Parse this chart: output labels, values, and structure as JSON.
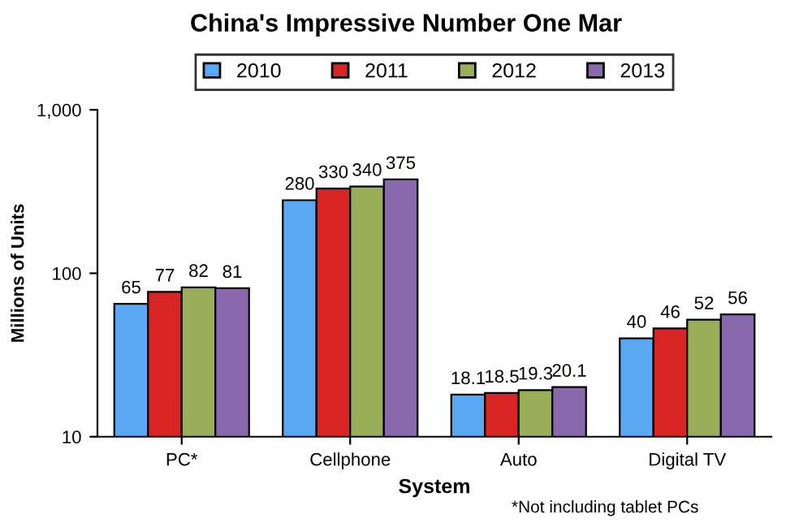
{
  "chart_data": {
    "type": "bar",
    "title": "China's Impressive Number One Mar",
    "xlabel": "System",
    "ylabel": "Millions of Units",
    "annotations": [
      "*Not including tablet PCs"
    ],
    "categories": [
      "PC*",
      "Cellphone",
      "Auto",
      "Digital TV"
    ],
    "series": [
      {
        "name": "2010",
        "color": "#5aa7f2",
        "values": [
          65,
          280,
          18.1,
          40
        ]
      },
      {
        "name": "2011",
        "color": "#d92424",
        "values": [
          77,
          330,
          18.5,
          46
        ]
      },
      {
        "name": "2012",
        "color": "#9aae5a",
        "values": [
          82,
          340,
          19.3,
          52
        ]
      },
      {
        "name": "2013",
        "color": "#8a68ad",
        "values": [
          81,
          375,
          20.1,
          56
        ]
      }
    ],
    "log": true,
    "ylim": [
      10,
      1000
    ],
    "yticks": [
      10,
      100,
      {
        "value": 1000,
        "label": "1,000"
      }
    ],
    "data_labels": true,
    "legend": "top",
    "grid": false
  }
}
